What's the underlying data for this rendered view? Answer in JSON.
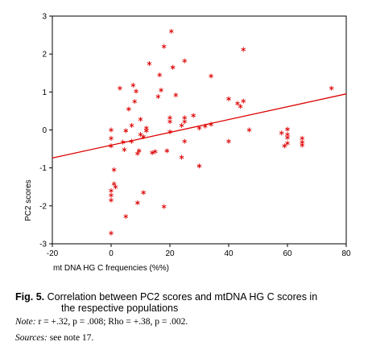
{
  "chart_data": {
    "type": "scatter",
    "xlabel": "mt DNA HG C frequencies (%%)",
    "ylabel": "PC2 scores",
    "xlim": [
      -20,
      80
    ],
    "ylim": [
      -3,
      3
    ],
    "xticks": [
      "-20",
      "0",
      "20",
      "40",
      "60",
      "80"
    ],
    "yticks": [
      "3",
      "2",
      "1",
      "0",
      "-1",
      "-2",
      "-3"
    ],
    "marker": "*",
    "marker_color": "#dd0000",
    "regression_line": {
      "x": [
        -20,
        80
      ],
      "y": [
        -0.74,
        0.95
      ],
      "color": "#dd0000"
    },
    "points": [
      {
        "x": 0,
        "y": -2.72
      },
      {
        "x": 0,
        "y": -1.6
      },
      {
        "x": 0,
        "y": -1.72
      },
      {
        "x": 0,
        "y": -1.85
      },
      {
        "x": 0,
        "y": -0.42
      },
      {
        "x": 0,
        "y": -0.22
      },
      {
        "x": 0,
        "y": 0.0
      },
      {
        "x": 1,
        "y": -1.05
      },
      {
        "x": 1,
        "y": -1.42
      },
      {
        "x": 1.5,
        "y": -1.5
      },
      {
        "x": 3,
        "y": 1.1
      },
      {
        "x": 4,
        "y": -0.32
      },
      {
        "x": 4.5,
        "y": -0.52
      },
      {
        "x": 5,
        "y": -2.28
      },
      {
        "x": 5,
        "y": -0.02
      },
      {
        "x": 6,
        "y": 0.55
      },
      {
        "x": 7,
        "y": -0.3
      },
      {
        "x": 7,
        "y": 0.12
      },
      {
        "x": 7.5,
        "y": 1.18
      },
      {
        "x": 8,
        "y": 0.75
      },
      {
        "x": 8.5,
        "y": 1.02
      },
      {
        "x": 9,
        "y": -0.62
      },
      {
        "x": 9,
        "y": -1.92
      },
      {
        "x": 9.5,
        "y": -0.55
      },
      {
        "x": 10,
        "y": -0.12
      },
      {
        "x": 10,
        "y": 0.28
      },
      {
        "x": 11,
        "y": -1.65
      },
      {
        "x": 11,
        "y": -0.18
      },
      {
        "x": 12,
        "y": -0.02
      },
      {
        "x": 12,
        "y": 0.05
      },
      {
        "x": 13,
        "y": 1.75
      },
      {
        "x": 14,
        "y": -0.6
      },
      {
        "x": 15,
        "y": -0.57
      },
      {
        "x": 16,
        "y": 0.88
      },
      {
        "x": 16.5,
        "y": 1.45
      },
      {
        "x": 17,
        "y": 1.05
      },
      {
        "x": 18,
        "y": 2.2
      },
      {
        "x": 18,
        "y": -2.02
      },
      {
        "x": 19,
        "y": -0.55
      },
      {
        "x": 20,
        "y": -0.05
      },
      {
        "x": 20,
        "y": 0.22
      },
      {
        "x": 20,
        "y": 0.32
      },
      {
        "x": 20.5,
        "y": 2.6
      },
      {
        "x": 21,
        "y": 1.65
      },
      {
        "x": 22,
        "y": 0.92
      },
      {
        "x": 24,
        "y": 0.12
      },
      {
        "x": 24,
        "y": -0.72
      },
      {
        "x": 25,
        "y": 0.22
      },
      {
        "x": 25,
        "y": 0.32
      },
      {
        "x": 25,
        "y": -0.3
      },
      {
        "x": 25,
        "y": 1.82
      },
      {
        "x": 28,
        "y": 0.38
      },
      {
        "x": 30,
        "y": -0.95
      },
      {
        "x": 30,
        "y": 0.05
      },
      {
        "x": 32,
        "y": 0.1
      },
      {
        "x": 34,
        "y": 1.42
      },
      {
        "x": 34,
        "y": 0.15
      },
      {
        "x": 40,
        "y": 0.82
      },
      {
        "x": 40,
        "y": -0.3
      },
      {
        "x": 43,
        "y": 0.7
      },
      {
        "x": 44,
        "y": 0.62
      },
      {
        "x": 45,
        "y": 0.76
      },
      {
        "x": 45,
        "y": 2.12
      },
      {
        "x": 47,
        "y": 0.0
      },
      {
        "x": 58,
        "y": -0.08
      },
      {
        "x": 59,
        "y": -0.42
      },
      {
        "x": 60,
        "y": 0.02
      },
      {
        "x": 60,
        "y": -0.12
      },
      {
        "x": 60,
        "y": -0.2
      },
      {
        "x": 60,
        "y": -0.35
      },
      {
        "x": 65,
        "y": -0.22
      },
      {
        "x": 65,
        "y": -0.32
      },
      {
        "x": 65,
        "y": -0.4
      },
      {
        "x": 75,
        "y": 1.1
      }
    ]
  },
  "caption": {
    "fig_label": "Fig. 5.",
    "line1": " Correlation between PC2 scores and mtDNA HG C scores in",
    "line2": "the respective populations"
  },
  "note": {
    "label": "Note:",
    "text": " r = +.32, p = .008; Rho = +.38, p = .002."
  },
  "sources": {
    "label": "Sources:",
    "text": " see note 17."
  }
}
